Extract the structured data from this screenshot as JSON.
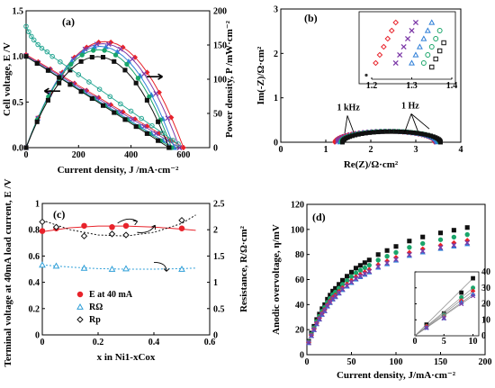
{
  "chart_data": [
    {
      "id": "a",
      "type": "line",
      "label": "(a)",
      "xlabel": "Current density, J /mA·cm⁻²",
      "ylabel": "Cell voltage, E /V",
      "y2label": "Power density, P /mW·cm⁻²",
      "xlim": [
        0,
        700
      ],
      "ylim": [
        0,
        1.5
      ],
      "y2lim": [
        0,
        200
      ],
      "xticks": [
        0,
        200,
        400,
        600
      ],
      "yticks": [
        0,
        0.5,
        1.0,
        1.5
      ],
      "y2ticks": [
        0,
        50,
        100,
        150,
        200
      ],
      "ytick_labels": [
        "0.0",
        "0.5",
        "1.0",
        "1.5"
      ],
      "series": [
        {
          "color": "#e8232b",
          "marker": "diamond",
          "ocv": 1.02,
          "jmax": 600,
          "pmax": 155
        },
        {
          "color": "#7d3aa8",
          "marker": "x",
          "ocv": 1.01,
          "jmax": 585,
          "pmax": 152
        },
        {
          "color": "#2f7fd8",
          "marker": "triangle",
          "ocv": 1.0,
          "jmax": 565,
          "pmax": 148
        },
        {
          "color": "#1aa56a",
          "marker": "circle",
          "ocv": 1.0,
          "jmax": 555,
          "pmax": 143
        },
        {
          "color": "#111111",
          "marker": "square",
          "ocv": 1.0,
          "jmax": 545,
          "pmax": 133
        }
      ],
      "extra_series": [
        {
          "color": "#26a693",
          "marker": "open-circle",
          "x": [
            0,
            10,
            20,
            30,
            45,
            60,
            80,
            100,
            130,
            160,
            200,
            240,
            280,
            320,
            360,
            400,
            440,
            480,
            520,
            560,
            580
          ],
          "y": [
            1.33,
            1.27,
            1.22,
            1.18,
            1.13,
            1.09,
            1.05,
            1.0,
            0.94,
            0.88,
            0.8,
            0.72,
            0.64,
            0.56,
            0.48,
            0.4,
            0.32,
            0.24,
            0.16,
            0.08,
            0.04
          ]
        }
      ],
      "arrows": [
        "left",
        "right"
      ]
    },
    {
      "id": "b",
      "type": "scatter",
      "label": "(b)",
      "xlabel": "Re(Z)/Ω·cm²",
      "ylabel": "Im(-Z)/Ω·cm²",
      "xlim": [
        0,
        4
      ],
      "ylim": [
        0,
        3
      ],
      "xticks": [
        0,
        1,
        2,
        3,
        4
      ],
      "yticks": [
        0,
        1,
        2,
        3
      ],
      "annotations": [
        "1 kHz",
        "1 Hz"
      ],
      "series": [
        {
          "color": "#e8232b",
          "marker": "diamond",
          "r0": 1.2,
          "r1": 3.42
        },
        {
          "color": "#7d3aa8",
          "marker": "x",
          "r0": 1.26,
          "r1": 3.45
        },
        {
          "color": "#2f7fd8",
          "marker": "triangle",
          "r0": 1.31,
          "r1": 3.48
        },
        {
          "color": "#1aa56a",
          "marker": "circle",
          "r0": 1.34,
          "r1": 3.52
        },
        {
          "color": "#111111",
          "marker": "square",
          "r0": 1.37,
          "r1": 3.55
        }
      ],
      "inset": {
        "xlim": [
          1.2,
          1.4
        ],
        "ylim": [
          0,
          0.08
        ],
        "xticks": [
          1.2,
          1.3,
          1.4
        ],
        "xtick_labels": [
          "1.2",
          "1.3",
          "1.4"
        ],
        "series": [
          {
            "color": "#e8232b",
            "marker": "diamond",
            "x": [
              1.21,
              1.22,
              1.23,
              1.24,
              1.25,
              1.26
            ],
            "y": [
              0.02,
              0.03,
              0.04,
              0.05,
              0.06,
              0.07
            ]
          },
          {
            "color": "#7d3aa8",
            "marker": "x",
            "x": [
              1.26,
              1.27,
              1.28,
              1.29,
              1.3,
              1.31
            ],
            "y": [
              0.02,
              0.03,
              0.04,
              0.05,
              0.06,
              0.07
            ]
          },
          {
            "color": "#2f7fd8",
            "marker": "triangle",
            "x": [
              1.3,
              1.31,
              1.32,
              1.33,
              1.34,
              1.35
            ],
            "y": [
              0.02,
              0.03,
              0.04,
              0.05,
              0.06,
              0.07
            ]
          },
          {
            "color": "#1aa56a",
            "marker": "circle",
            "x": [
              1.33,
              1.34,
              1.35,
              1.36,
              1.37
            ],
            "y": [
              0.02,
              0.03,
              0.04,
              0.05,
              0.06
            ]
          },
          {
            "color": "#111111",
            "marker": "square",
            "x": [
              1.35,
              1.36,
              1.37,
              1.38
            ],
            "y": [
              0.015,
              0.025,
              0.035,
              0.045
            ]
          }
        ],
        "origin_point": {
          "x": 1.2,
          "y": 0.0
        }
      }
    },
    {
      "id": "c",
      "type": "scatter",
      "label": "(c)",
      "xlabel": "x in Ni1-xCox",
      "ylabel": "Terminal voltage at 40mA load current, E /V",
      "y2label": "Resistance, R/Ω·cm²",
      "xlim": [
        0,
        0.6
      ],
      "ylim": [
        0,
        1.0
      ],
      "y2lim": [
        0,
        2.5
      ],
      "xticks": [
        0,
        0.2,
        0.4,
        0.6
      ],
      "xtick_labels": [
        "0",
        "0.2",
        "0.4",
        "0.6"
      ],
      "yticks": [
        0,
        0.2,
        0.4,
        0.6,
        0.8,
        1.0
      ],
      "ytick_labels": [
        "0",
        "0.2",
        "0.4",
        "0.6",
        "0.8",
        "1"
      ],
      "y2ticks": [
        0,
        0.5,
        1.0,
        1.5,
        2.0,
        2.5
      ],
      "y2tick_labels": [
        "0",
        "0.5",
        "1",
        "1.5",
        "2",
        "2.5"
      ],
      "series": [
        {
          "name": "E at 40 mA",
          "axis": "left",
          "color": "#e8232b",
          "marker": "circle-filled",
          "x": [
            0,
            0.05,
            0.15,
            0.25,
            0.3,
            0.5
          ],
          "y": [
            0.79,
            0.81,
            0.83,
            0.82,
            0.83,
            0.81
          ],
          "fit": [
            [
              0,
              0.785
            ],
            [
              0.1,
              0.815
            ],
            [
              0.2,
              0.828
            ],
            [
              0.3,
              0.828
            ],
            [
              0.4,
              0.82
            ],
            [
              0.5,
              0.805
            ],
            [
              0.55,
              0.795
            ]
          ],
          "fit_color": "#e8232b"
        },
        {
          "name": "RΩ",
          "axis": "right",
          "color": "#2f9fd8",
          "marker": "triangle-open",
          "x": [
            0,
            0.05,
            0.15,
            0.25,
            0.3,
            0.5
          ],
          "y": [
            1.33,
            1.31,
            1.27,
            1.25,
            1.26,
            1.25
          ],
          "fit": [
            [
              0,
              1.33
            ],
            [
              0.1,
              1.29
            ],
            [
              0.2,
              1.26
            ],
            [
              0.3,
              1.25
            ],
            [
              0.4,
              1.25
            ],
            [
              0.5,
              1.26
            ],
            [
              0.55,
              1.27
            ]
          ],
          "fit_color": "#2f9fd8"
        },
        {
          "name": "Rp",
          "axis": "right",
          "color": "#111111",
          "marker": "diamond-open",
          "x": [
            0,
            0.05,
            0.15,
            0.25,
            0.3,
            0.5
          ],
          "y": [
            2.15,
            2.05,
            1.88,
            1.92,
            1.9,
            2.18
          ],
          "fit": [
            [
              0,
              2.18
            ],
            [
              0.1,
              2.0
            ],
            [
              0.2,
              1.9
            ],
            [
              0.3,
              1.88
            ],
            [
              0.4,
              1.95
            ],
            [
              0.5,
              2.12
            ],
            [
              0.55,
              2.28
            ]
          ],
          "fit_color": "#111111"
        }
      ],
      "legend": [
        {
          "marker": "circle-filled",
          "color": "#e8232b",
          "label": "E at 40 mA"
        },
        {
          "marker": "triangle-open",
          "color": "#2f9fd8",
          "label": "RΩ"
        },
        {
          "marker": "diamond-open",
          "color": "#111111",
          "label": "Rp"
        }
      ]
    },
    {
      "id": "d",
      "type": "scatter",
      "label": "(d)",
      "xlabel": "Current density, J/mA·cm⁻²",
      "ylabel": "Anodic overvoltage, η/mV",
      "xlim": [
        0,
        200
      ],
      "ylim": [
        0,
        120
      ],
      "xticks": [
        0,
        50,
        100,
        150,
        200
      ],
      "yticks": [
        0,
        20,
        40,
        60,
        80,
        100,
        120
      ],
      "series": [
        {
          "color": "#111111",
          "marker": "square",
          "scale": 1.08
        },
        {
          "color": "#1aa56a",
          "marker": "circle",
          "scale": 1.02
        },
        {
          "color": "#e8232b",
          "marker": "diamond",
          "scale": 0.97
        },
        {
          "color": "#2f7fd8",
          "marker": "triangle",
          "scale": 0.94
        },
        {
          "color": "#7d3aa8",
          "marker": "x",
          "scale": 0.95
        }
      ],
      "x": [
        2,
        5,
        8,
        11,
        14,
        17,
        20,
        23,
        26,
        29,
        32,
        36,
        40,
        45,
        50,
        55,
        60,
        65,
        70,
        80,
        90,
        100,
        115,
        130,
        150,
        165,
        180
      ],
      "y_base": [
        10,
        16,
        21,
        26,
        30,
        34,
        37,
        41,
        44,
        47,
        49,
        52,
        55,
        58,
        61,
        64,
        66,
        68,
        70,
        74,
        77,
        80,
        84,
        87,
        90,
        92,
        94
      ],
      "inset": {
        "xlim": [
          0,
          11
        ],
        "ylim": [
          0,
          40
        ],
        "xticks": [
          0,
          5,
          10
        ],
        "yticks": [
          0,
          10,
          20,
          30,
          40
        ],
        "x": [
          2,
          5,
          8,
          10
        ],
        "series": [
          {
            "color": "#111111",
            "marker": "square",
            "y": [
              7,
              14,
              27,
              36
            ]
          },
          {
            "color": "#1aa56a",
            "marker": "circle",
            "y": [
              6,
              13,
              24,
              30
            ]
          },
          {
            "color": "#e8232b",
            "marker": "diamond",
            "y": [
              6,
              12,
              22,
              28
            ]
          },
          {
            "color": "#2f7fd8",
            "marker": "triangle",
            "y": [
              5,
              11,
              21,
              26
            ]
          },
          {
            "color": "#7d3aa8",
            "marker": "x",
            "y": [
              5,
              11,
              20,
              25
            ]
          }
        ]
      }
    }
  ]
}
